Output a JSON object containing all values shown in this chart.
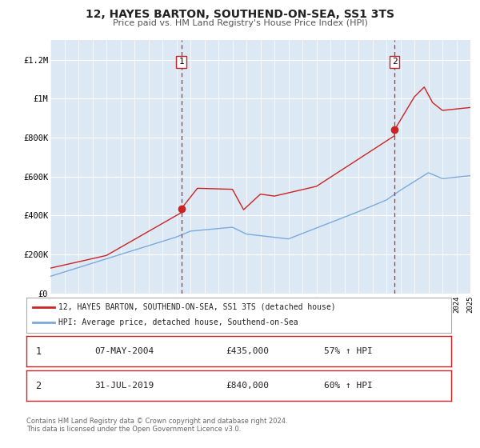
{
  "title": "12, HAYES BARTON, SOUTHEND-ON-SEA, SS1 3TS",
  "subtitle": "Price paid vs. HM Land Registry's House Price Index (HPI)",
  "bg_color": "#dce9f5",
  "red_line_color": "#cc2222",
  "blue_line_color": "#7aaadd",
  "sale1_x": 2004.35,
  "sale1_y": 435000,
  "sale2_x": 2019.58,
  "sale2_y": 840000,
  "xmin": 1995,
  "xmax": 2025,
  "ymin": 0,
  "ymax": 1300000,
  "yticks": [
    0,
    200000,
    400000,
    600000,
    800000,
    1000000,
    1200000
  ],
  "ytick_labels": [
    "£0",
    "£200K",
    "£400K",
    "£600K",
    "£800K",
    "£1M",
    "£1.2M"
  ],
  "legend1_label": "12, HAYES BARTON, SOUTHEND-ON-SEA, SS1 3TS (detached house)",
  "legend2_label": "HPI: Average price, detached house, Southend-on-Sea",
  "sale1_date": "07-MAY-2004",
  "sale1_price": "£435,000",
  "sale1_hpi": "57% ↑ HPI",
  "sale2_date": "31-JUL-2019",
  "sale2_price": "£840,000",
  "sale2_hpi": "60% ↑ HPI",
  "footer1": "Contains HM Land Registry data © Crown copyright and database right 2024.",
  "footer2": "This data is licensed under the Open Government Licence v3.0."
}
